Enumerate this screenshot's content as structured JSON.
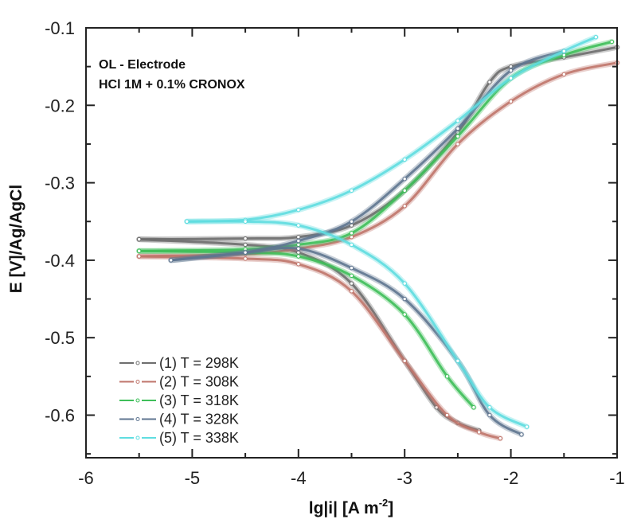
{
  "chart_data": {
    "type": "line",
    "title": "",
    "xlabel": "lg|i| [A m",
    "xlabel_sup": "-2",
    "xlabel_end": "]",
    "ylabel": "E [V]/Ag/AgCl",
    "xlim": [
      -6,
      -1
    ],
    "ylim": [
      -0.655,
      -0.1
    ],
    "x_ticks": [
      -6,
      -5,
      -4,
      -3,
      -2,
      -1
    ],
    "x_tick_labels": [
      "-6",
      "-5",
      "-4",
      "-3",
      "-2",
      "-1"
    ],
    "y_ticks": [
      -0.1,
      -0.2,
      -0.3,
      -0.4,
      -0.5,
      -0.6
    ],
    "y_tick_labels": [
      "-0.1",
      "-0.2",
      "-0.3",
      "-0.4",
      "-0.5",
      "-0.6"
    ],
    "grid": false,
    "legend_position": "bottom-left",
    "annotations": [
      "OL - Electrode",
      "HCl 1M + 0.1% CRONOX"
    ],
    "series": [
      {
        "name": "(1) T = 298K",
        "color": "#6e6e6e",
        "marker": "square",
        "anodic": {
          "x": [
            -5.5,
            -4.5,
            -4.0,
            -3.5,
            -3.0,
            -2.5,
            -2.2,
            -2.0,
            -1.5,
            -1.0
          ],
          "y": [
            -0.373,
            -0.372,
            -0.37,
            -0.355,
            -0.31,
            -0.235,
            -0.17,
            -0.15,
            -0.138,
            -0.125
          ]
        },
        "cathodic": {
          "x": [
            -5.5,
            -4.5,
            -4.0,
            -3.5,
            -3.0,
            -2.7,
            -2.5,
            -2.3
          ],
          "y": [
            -0.373,
            -0.38,
            -0.39,
            -0.43,
            -0.53,
            -0.59,
            -0.61,
            -0.62
          ]
        }
      },
      {
        "name": "(2) T = 308K",
        "color": "#c0766c",
        "marker": "circle",
        "anodic": {
          "x": [
            -5.5,
            -4.5,
            -4.0,
            -3.5,
            -3.0,
            -2.5,
            -2.0,
            -1.5,
            -1.0
          ],
          "y": [
            -0.395,
            -0.392,
            -0.385,
            -0.37,
            -0.33,
            -0.25,
            -0.195,
            -0.16,
            -0.145
          ]
        },
        "cathodic": {
          "x": [
            -5.5,
            -4.5,
            -4.0,
            -3.5,
            -3.0,
            -2.6,
            -2.3,
            -2.1
          ],
          "y": [
            -0.395,
            -0.398,
            -0.405,
            -0.44,
            -0.53,
            -0.6,
            -0.622,
            -0.63
          ]
        }
      },
      {
        "name": "(3) T = 318K",
        "color": "#3fbf5a",
        "marker": "triangle-up",
        "anodic": {
          "x": [
            -5.5,
            -4.5,
            -4.0,
            -3.5,
            -3.0,
            -2.5,
            -2.0,
            -1.5,
            -1.05
          ],
          "y": [
            -0.388,
            -0.386,
            -0.38,
            -0.365,
            -0.31,
            -0.24,
            -0.165,
            -0.135,
            -0.118
          ]
        },
        "cathodic": {
          "x": [
            -5.5,
            -4.5,
            -4.0,
            -3.5,
            -3.0,
            -2.6,
            -2.35
          ],
          "y": [
            -0.388,
            -0.39,
            -0.395,
            -0.42,
            -0.47,
            -0.55,
            -0.59
          ]
        }
      },
      {
        "name": "(4) T = 328K",
        "color": "#5f7590",
        "marker": "triangle-down",
        "anodic": {
          "x": [
            -5.2,
            -4.5,
            -4.0,
            -3.5,
            -3.0,
            -2.5,
            -2.0,
            -1.5
          ],
          "y": [
            -0.4,
            -0.39,
            -0.375,
            -0.35,
            -0.295,
            -0.23,
            -0.155,
            -0.13
          ]
        },
        "cathodic": {
          "x": [
            -5.2,
            -4.5,
            -4.0,
            -3.5,
            -3.0,
            -2.5,
            -2.2,
            -1.9
          ],
          "y": [
            -0.4,
            -0.39,
            -0.385,
            -0.41,
            -0.45,
            -0.53,
            -0.6,
            -0.625
          ]
        }
      },
      {
        "name": "(5) T = 338K",
        "color": "#5fdde0",
        "marker": "diamond",
        "anodic": {
          "x": [
            -5.05,
            -4.5,
            -4.0,
            -3.5,
            -3.0,
            -2.5,
            -2.0,
            -1.5,
            -1.2
          ],
          "y": [
            -0.35,
            -0.348,
            -0.335,
            -0.31,
            -0.27,
            -0.22,
            -0.165,
            -0.13,
            -0.112
          ]
        },
        "cathodic": {
          "x": [
            -5.05,
            -4.5,
            -4.0,
            -3.5,
            -3.0,
            -2.5,
            -2.2,
            -1.85
          ],
          "y": [
            -0.35,
            -0.35,
            -0.355,
            -0.38,
            -0.43,
            -0.53,
            -0.59,
            -0.615
          ]
        }
      }
    ]
  }
}
